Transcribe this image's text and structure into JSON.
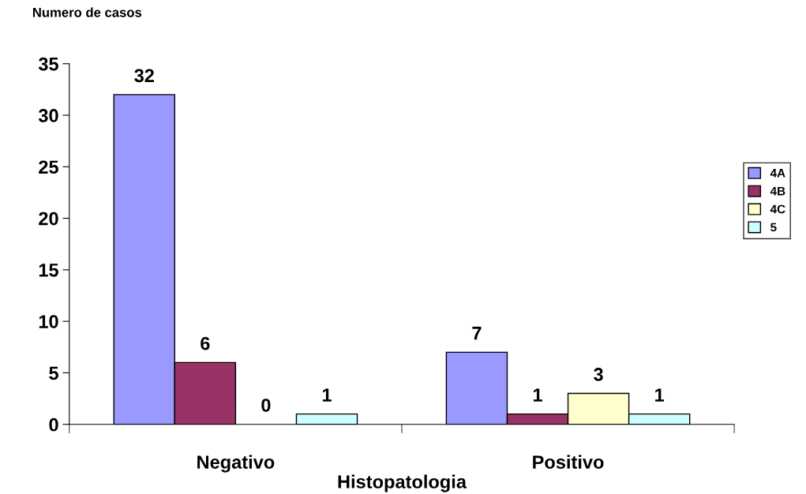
{
  "chart_data": {
    "type": "bar",
    "xlabel": "Histopatologia",
    "ylabel": "Numero de casos",
    "categories": [
      "Negativo",
      "Positivo"
    ],
    "series": [
      {
        "name": "4A",
        "color": "#9999ff",
        "values": [
          32,
          7
        ]
      },
      {
        "name": "4B",
        "color": "#993366",
        "values": [
          6,
          1
        ]
      },
      {
        "name": "4C",
        "color": "#ffffcc",
        "values": [
          0,
          3
        ]
      },
      {
        "name": "5",
        "color": "#ccffff",
        "values": [
          1,
          1
        ]
      }
    ],
    "ylim": [
      0,
      35
    ],
    "yticks": [
      0,
      5,
      10,
      15,
      20,
      25,
      30,
      35
    ],
    "data_labels": true,
    "legend": "right",
    "grid": false
  }
}
